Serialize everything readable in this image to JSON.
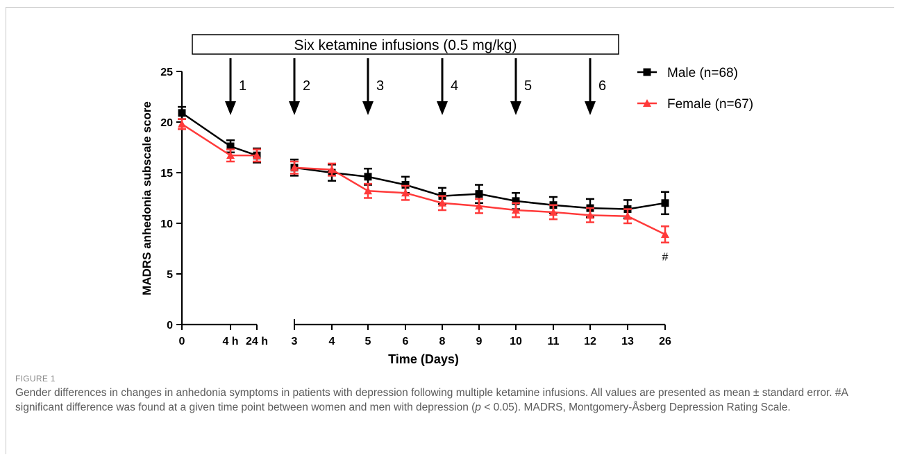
{
  "figure": {
    "label": "FIGURE 1",
    "caption_parts": {
      "a": "Gender differences in changes in anhedonia symptoms in patients with depression following multiple ketamine infusions. All values are presented as mean ± standard error. #A significant difference was found at a given time point between women and men with depression (",
      "p": "p",
      "b": " < 0.05). MADRS, Montgomery-Åsberg Depression Rating Scale."
    }
  },
  "chart_data": {
    "type": "line",
    "title": "",
    "banner": "Six ketamine infusions (0.5 mg/kg)",
    "xlabel": "Time (Days)",
    "ylabel": "MADRS anhedonia subscale score",
    "ylim": [
      0,
      25
    ],
    "yticks": [
      0,
      5,
      10,
      15,
      20,
      25
    ],
    "categories": [
      "0",
      "4 h",
      "24 h",
      "3",
      "4",
      "5",
      "6",
      "8",
      "9",
      "10",
      "11",
      "12",
      "13",
      "26"
    ],
    "axis_break_after": "24 h",
    "infusion_markers": [
      {
        "label": "1",
        "at": "4 h"
      },
      {
        "label": "2",
        "at": "3"
      },
      {
        "label": "3",
        "at": "5"
      },
      {
        "label": "4",
        "at": "8"
      },
      {
        "label": "5",
        "at": "10"
      },
      {
        "label": "6",
        "at": "12"
      }
    ],
    "series": [
      {
        "name": "Male (n=68)",
        "color": "#000000",
        "marker": "square",
        "values": [
          20.9,
          17.6,
          16.7,
          15.5,
          15.0,
          14.6,
          13.8,
          12.7,
          12.9,
          12.2,
          11.8,
          11.5,
          11.4,
          12.0
        ],
        "errors": [
          0.6,
          0.6,
          0.7,
          0.8,
          0.8,
          0.8,
          0.8,
          0.8,
          0.9,
          0.8,
          0.8,
          0.9,
          0.9,
          1.1
        ]
      },
      {
        "name": "Female (n=67)",
        "color": "#ff3a3a",
        "marker": "triangle",
        "values": [
          19.8,
          16.7,
          16.7,
          15.5,
          15.3,
          13.2,
          13.0,
          12.0,
          11.7,
          11.3,
          11.1,
          10.8,
          10.7,
          8.9
        ],
        "errors": [
          0.5,
          0.6,
          0.6,
          0.6,
          0.6,
          0.7,
          0.7,
          0.7,
          0.7,
          0.7,
          0.7,
          0.7,
          0.7,
          0.8
        ]
      }
    ],
    "annotations": [
      {
        "text": "#",
        "at": "26",
        "series": "Female (n=67)"
      }
    ],
    "legend_position": "top-right"
  }
}
